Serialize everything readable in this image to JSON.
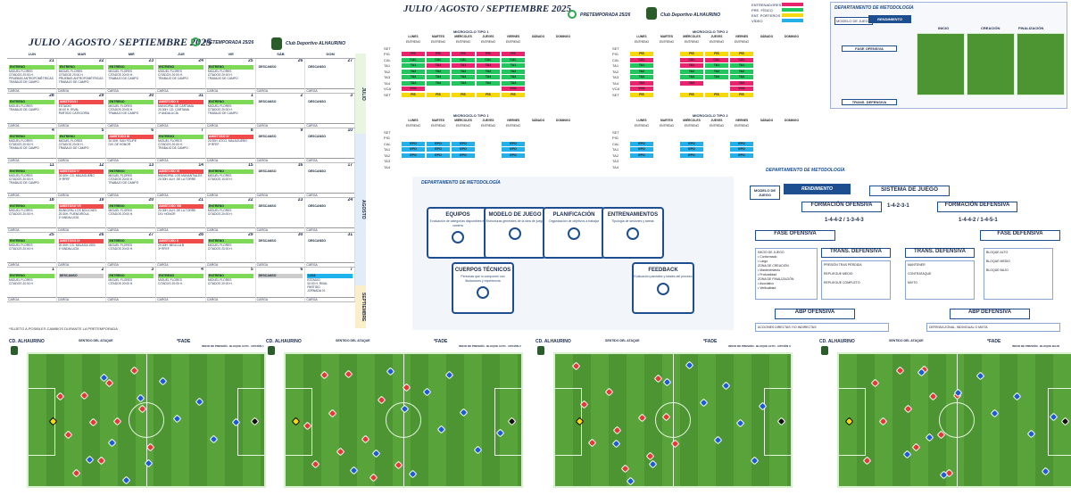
{
  "calendar": {
    "title": "JULIO / AGOSTO / SEPTIEMBRE 2025",
    "pretemporada": "PRETEMPORADA 25/26",
    "club": "Club Deportivo ALHAURINO",
    "days": [
      "LUN",
      "MAR",
      "MIÉ",
      "JUE",
      "VIE",
      "SÁB",
      "DOM"
    ],
    "months": [
      "JULIO",
      "AGOSTO",
      "SEPTIEMBRE"
    ],
    "footer": "*SUJETO A POSIBLES CAMBIOS DURANTE LA PRETEMPORADA",
    "weeks": [
      [
        {
          "n": "21",
          "bar": "ENTRENO",
          "c": "g",
          "t": "MIGUEL FLORES\nCITADOS 20:00 H.\nPRUEBAS ANTROPOMÉTRICAS\nTRABAJO DE CAMPO"
        },
        {
          "n": "22",
          "bar": "ENTRENO",
          "c": "g",
          "t": "MIGUEL FLORES\nCITADOS 20:00 H.\nPRUEBAS ANTROPOMÉTRICAS\nTRABAJO DE CAMPO"
        },
        {
          "n": "23",
          "bar": "ENTRENO",
          "c": "g",
          "t": "MIGUEL FLORES\nCITADOS 20:00 H.\nTRABAJO DE CAMPO"
        },
        {
          "n": "24",
          "bar": "ENTRENO",
          "c": "g",
          "t": "MIGUEL FLORES\nCITADOS 20:00 H.\nTRABAJO DE CAMPO"
        },
        {
          "n": "25",
          "bar": "ENTRENO",
          "c": "g",
          "t": "MIGUEL FLORES\nCITADOS 20:00 H.\nTRABAJO DE CAMPO"
        },
        {
          "n": "26",
          "bar": "DESCANSO",
          "c": "",
          "t": ""
        },
        {
          "n": "27",
          "bar": "DESCANSO",
          "c": "",
          "t": ""
        }
      ],
      [
        {
          "n": "28",
          "bar": "ENTRENO",
          "c": "g",
          "t": "MIGUEL FLORES\nTRABAJO DE CAMPO"
        },
        {
          "n": "29",
          "bar": "AMISTOSO I",
          "c": "r",
          "t": "ESTADIO\n00:00 H. RIVAL\nPARTIDO CATEGORÍA"
        },
        {
          "n": "30",
          "bar": "ENTRENO",
          "c": "g",
          "t": "MIGUEL FLORES\nCITADOS 20:00 H.\nTRABAJO DE CAMPO"
        },
        {
          "n": "31",
          "bar": "AMISTOSO II",
          "c": "r",
          "t": "MUNICIPAL DE CÁRTAMA\n20:30H. CD. CÁRTAMA\n1ª ANDALUCÍA"
        },
        {
          "n": "1",
          "bar": "ENTRENO",
          "c": "g",
          "t": "MIGUEL FLORES\nCITADOS 20:00 H.\nTRABAJO DE CAMPO"
        },
        {
          "n": "2",
          "bar": "DESCANSO",
          "c": "",
          "t": ""
        },
        {
          "n": "3",
          "bar": "DESCANSO",
          "c": "",
          "t": ""
        }
      ],
      [
        {
          "n": "4",
          "bar": "ENTRENO",
          "c": "g",
          "t": "MIGUEL FLORES\nCITADOS 20:00 H.\nTRABAJO DE CAMPO"
        },
        {
          "n": "5",
          "bar": "ENTRENO",
          "c": "g",
          "t": "MIGUEL FLORES\nCITADOS 20:00 H.\nTRABAJO DE CAMPO"
        },
        {
          "n": "6",
          "bar": "AMISTOSO III",
          "c": "r",
          "t": "20:30H. SAN FELIPE\nDIV. DE HONOR"
        },
        {
          "n": "7",
          "bar": "ENTRENO",
          "c": "g",
          "t": "MIGUEL FLORES\nCITADOS 20:00 H.\nTRABAJO DE CAMPO"
        },
        {
          "n": "8",
          "bar": "AMISTOSO IV",
          "c": "r",
          "t": "20:30H. ATCO. MALAGUEÑO\n3ª RFEF"
        },
        {
          "n": "9",
          "bar": "DESCANSO",
          "c": "",
          "t": ""
        },
        {
          "n": "10",
          "bar": "DESCANSO",
          "c": "",
          "t": ""
        }
      ],
      [
        {
          "n": "11",
          "bar": "ENTRENO",
          "c": "g",
          "t": "MIGUEL FLORES\nCITADOS 20:00 H.\nTRABAJO DE CAMPO"
        },
        {
          "n": "12",
          "bar": "AMISTOSO V",
          "c": "r",
          "t": "20:30H. CD. MALAGUEÑO\n3ª RFEF"
        },
        {
          "n": "13",
          "bar": "ENTRENO",
          "c": "g",
          "t": "MIGUEL FLORES\nCITADOS 20:00 H.\nTRABAJO DE CAMPO"
        },
        {
          "n": "14",
          "bar": "AMISTOSO VI",
          "c": "r",
          "t": "MUNICIPAL LOS MANANTIALES\n20:30H. ALH. DE LA TORRE"
        },
        {
          "n": "15",
          "bar": "ENTRENO",
          "c": "g",
          "t": "MIGUEL FLORES\nCITADOS 10:00 H."
        },
        {
          "n": "16",
          "bar": "DESCANSO",
          "c": "",
          "t": ""
        },
        {
          "n": "17",
          "bar": "DESCANSO",
          "c": "",
          "t": ""
        }
      ],
      [
        {
          "n": "18",
          "bar": "ENTRENO",
          "c": "g",
          "t": "MIGUEL FLORES\nCITADOS 20:00 H."
        },
        {
          "n": "19",
          "bar": "AMISTOSO VII",
          "c": "r",
          "t": "MUNICIPAL LOS BOLICHES\n20:30H. FUENGIROLA\n1ª ANDALUCÍA"
        },
        {
          "n": "20",
          "bar": "ENTRENO",
          "c": "g",
          "t": "MIGUEL FLORES\nCITADOS 20:00 H."
        },
        {
          "n": "21",
          "bar": "AMISTOSO VIII",
          "c": "r",
          "t": "20:30H. ALH. DE LA TORRE\nDIV. HONOR"
        },
        {
          "n": "22",
          "bar": "ENTRENO",
          "c": "g",
          "t": "MIGUEL FLORES\nCITADOS 20:00 H."
        },
        {
          "n": "23",
          "bar": "DESCANSO",
          "c": "",
          "t": ""
        },
        {
          "n": "24",
          "bar": "DESCANSO",
          "c": "",
          "t": ""
        }
      ],
      [
        {
          "n": "25",
          "bar": "ENTRENO",
          "c": "g",
          "t": "MIGUEL FLORES\nCITADOS 20:00 H."
        },
        {
          "n": "26",
          "bar": "AMISTOSO IX",
          "c": "r",
          "t": "20:30H. CD. MÁLAGA 1903\n1ª ANDALUCÍA"
        },
        {
          "n": "27",
          "bar": "ENTRENO",
          "c": "g",
          "t": "MIGUEL FLORES\nCITADOS 20:00 H."
        },
        {
          "n": "28",
          "bar": "AMISTOSO X",
          "c": "r",
          "t": "20:30H. MELILLA B\n3ª RFEF"
        },
        {
          "n": "29",
          "bar": "ENTRENO",
          "c": "g",
          "t": "MIGUEL FLORES\nCITADOS 20:00 H."
        },
        {
          "n": "30",
          "bar": "DESCANSO",
          "c": "",
          "t": ""
        },
        {
          "n": "31",
          "bar": "DESCANSO",
          "c": "",
          "t": ""
        }
      ],
      [
        {
          "n": "1",
          "bar": "ENTRENO",
          "c": "g",
          "t": "MIGUEL FLORES\nCITADOS 20:00 H."
        },
        {
          "n": "2",
          "bar": "DESCANSO",
          "c": "gr",
          "t": ""
        },
        {
          "n": "3",
          "bar": "ENTRENO",
          "c": "g",
          "t": "MIGUEL FLORES\nCITADOS 20:00 H."
        },
        {
          "n": "4",
          "bar": "ENTRENO",
          "c": "g",
          "t": "MIGUEL FLORES\nCITADOS 20:00 H."
        },
        {
          "n": "5",
          "bar": "ENTRENO",
          "c": "g",
          "t": "MIGUEL FLORES\nCITADOS 20:00 H."
        },
        {
          "n": "6",
          "bar": "DESCANSO",
          "c": "gr",
          "t": ""
        },
        {
          "n": "7",
          "bar": "LIGA",
          "c": "bl",
          "t": "ESTADIO\n00:00 H. RIVAL\nPARTIDO\nJORNADA 01"
        }
      ]
    ]
  },
  "micro": {
    "title": "JULIO / AGOSTO / SEPTIEMBRE 2025",
    "pretemporada": "PRETEMPORADA 25/26",
    "club": "Club Deportivo ALHAURINO",
    "legend": [
      "ENTRENADORES",
      "PRE. FÍSICO",
      "ENT. PORTEROS",
      "VÍDEO"
    ],
    "legend_colors": [
      "#e8246e",
      "#22c55e",
      "#f5d90a",
      "#23b0ea"
    ],
    "tipo1": "MICROCICLO TIPO 1",
    "tipo2": "MICROCICLO TIPO 2",
    "days": [
      "LUNES",
      "MARTES",
      "MIÉRCOLES",
      "JUEVES",
      "VIERNES",
      "SÁBADO",
      "DOMINGO"
    ],
    "rows": [
      "SET",
      "PIG",
      "CAL",
      "TA1",
      "TA2",
      "TA3",
      "TA4",
      "VCA",
      "SET"
    ],
    "entreno": "ENTRENO",
    "descanso": "DESCANSO"
  },
  "metodo1": {
    "dept": "DEPARTAMENTO DE METODOLOGÍA",
    "modelo": "MODELO DE JUEGO",
    "rend": "RENDIMIENTO",
    "fase_of": "FASE OFENSIVA",
    "trans": "TRANS. DEFENSIVA",
    "inicio": "INICIO",
    "creacion": "CREACIÓN",
    "finalizacion": "FINALIZACIÓN"
  },
  "metodo2": {
    "dept": "DEPARTAMENTO DE METODOLOGÍA",
    "items": [
      {
        "h": "EQUIPOS",
        "d": "Evaluación de categorías disponibles en cantera"
      },
      {
        "h": "MODELO DE JUEGO",
        "d": "Estructuras generales de la idea de juego"
      },
      {
        "h": "PLANIFICACIÓN",
        "d": "Organización de objetivos a trabajar"
      },
      {
        "h": "ENTRENAMIENTOS",
        "d": "Tipología de sesiones y tareas"
      },
      {
        "h": "CUERPOS TÉCNICOS",
        "d": "Personas que lo componen con titulaciones y experiencia"
      },
      {
        "h": "FEEDBACK",
        "d": "Evaluación parciales y totales del proceso"
      }
    ]
  },
  "metodo3": {
    "dept": "DEPARTAMENTO DE METODOLOGÍA",
    "modelo": "MODELO DE JUEGO",
    "rend": "RENDIMIENTO",
    "sistema": "SISTEMA DE JUEGO",
    "form_of": "FORMACIÓN OFENSIVA",
    "form_def": "FORMACIÓN DEFENSIVA",
    "sys_of": "1-4-4-2 / 1-3-4-3",
    "sys_mid": "1-4-2-3-1",
    "sys_def": "1-4-4-2 / 1-4-5-1",
    "fase_of": "FASE OFENSIVA",
    "fase_def": "FASE DEFENSIVA",
    "trans_def": "TRANS. DEFENSIVA",
    "trans_def2": "TRANS. DEFENSIVA",
    "inicio_list": "INICIO DE JUEGO\n• Conformado\n• Largo\nZONA DE CREACIÓN\n• Mantenimiento\n• Profundidad\nZONA DE FINALIZACIÓN\n• Asociativo\n• Verticalidad",
    "trans_list": "PRESIÓN TRAS PÉRDIDA\n\nREPLIEGUE MEDIO\n\nREPLIEGUE COMPLETO",
    "trans2_list": "MANTENER\n\nCONTRATAQUE\n\nMIXTO",
    "bloque_list": "BLOQUE ALTO\n\nBLOQUE MEDIO\n\nBLOQUE BAJO",
    "abp_of": "ABP OFENSIVA",
    "abp_def": "ABP DEFENSIVA",
    "abp_of_txt": "ACCIONES DIRECTAS Y/O INDIRECTAS",
    "abp_def_txt": "DEFENSA ZONAL, INDIVIDUAL O MIXTA"
  },
  "pitches": [
    {
      "club": "CD. ALHAURINO",
      "sentido": "SENTIDO DEL ATAQUE",
      "rival": "*FADE",
      "info": "INICIO DE PRESIÓN · BLOQUE ALTO · OPCIÓN 1"
    },
    {
      "club": "CD. ALHAURINO",
      "sentido": "SENTIDO DEL ATAQUE",
      "rival": "*FADE",
      "info": "INICIO DE PRESIÓN · BLOQUE ALTO · OPCIÓN 2"
    },
    {
      "club": "CD. ALHAURINO",
      "sentido": "SENTIDO DEL ATAQUE",
      "rival": "*FADE",
      "info": "INICIO DE PRESIÓN · BLOQUE ALTO · OPCIÓN 3"
    },
    {
      "club": "CD. ALHAURINO",
      "sentido": "SENTIDO DEL ATAQUE",
      "rival": "*FADE",
      "info": "INICIO DE PRESIÓN · BLOQUE BAJO"
    }
  ]
}
